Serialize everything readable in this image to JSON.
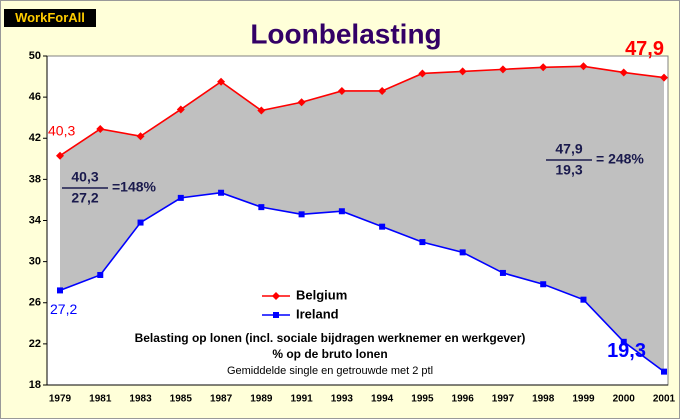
{
  "logo": "WorkForAll",
  "chart_data": {
    "type": "line",
    "title": "Loonbelasting",
    "subtitle": [
      "Belasting op lonen (incl. sociale bijdragen werknemer en werkgever)",
      "% op de bruto lonen",
      "Gemiddelde single en getrouwde met 2 ptl"
    ],
    "categories": [
      "1979",
      "1981",
      "1983",
      "1985",
      "1987",
      "1989",
      "1991",
      "1993",
      "1994",
      "1995",
      "1996",
      "1997",
      "1998",
      "1999",
      "2000",
      "2001"
    ],
    "series": [
      {
        "name": "Belgium",
        "color": "#ff0000",
        "marker": "diamond",
        "values": [
          40.3,
          42.9,
          42.2,
          44.8,
          47.5,
          44.7,
          45.5,
          46.6,
          46.6,
          48.3,
          48.5,
          48.7,
          48.9,
          49.0,
          48.4,
          47.9
        ],
        "value_labels": [
          "40,3",
          null,
          null,
          null,
          null,
          null,
          null,
          null,
          null,
          null,
          null,
          null,
          null,
          null,
          null,
          "47,9"
        ]
      },
      {
        "name": "Ireland",
        "color": "#0000ff",
        "marker": "square",
        "values": [
          27.2,
          28.7,
          33.8,
          36.2,
          36.7,
          35.3,
          34.6,
          34.9,
          33.4,
          31.9,
          30.9,
          28.9,
          27.8,
          26.3,
          22.2,
          19.3
        ],
        "value_labels": [
          "27,2",
          null,
          null,
          null,
          null,
          null,
          null,
          null,
          null,
          null,
          null,
          null,
          null,
          null,
          null,
          "19,3"
        ]
      }
    ],
    "fill_between": true,
    "fill_color": "#c0c0c0",
    "annotations": [
      {
        "numerator": "40,3",
        "denominator": "27,2",
        "result": "=148%"
      },
      {
        "numerator": "47,9",
        "denominator": "19,3",
        "result": "= 248%"
      }
    ],
    "ylim": [
      18,
      50
    ],
    "yticks": [
      18,
      22,
      26,
      30,
      34,
      38,
      42,
      46,
      50
    ],
    "grid": true
  }
}
